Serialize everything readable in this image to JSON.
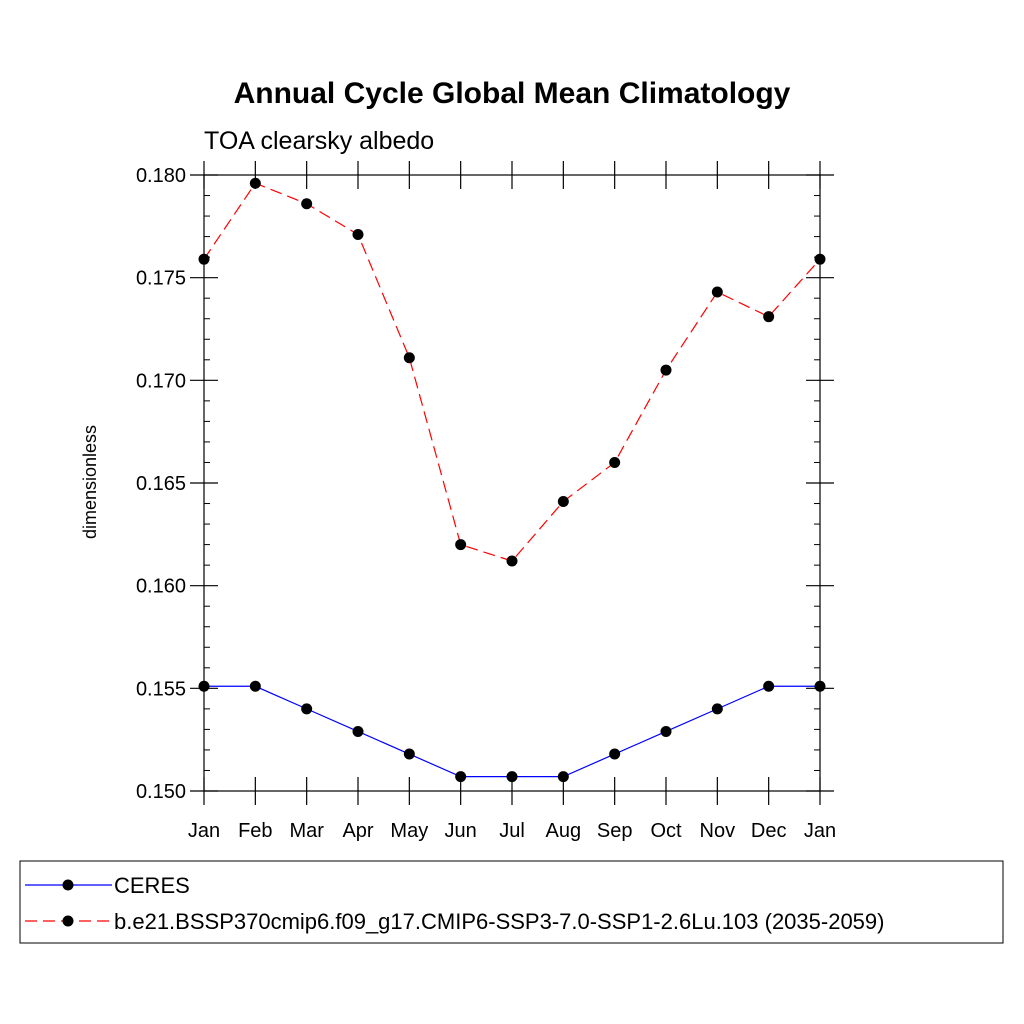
{
  "chart_data": {
    "type": "line",
    "title": "Annual Cycle Global Mean Climatology",
    "subtitle": "TOA clearsky albedo",
    "xlabel": "",
    "ylabel": "dimensionless",
    "categories": [
      "Jan",
      "Feb",
      "Mar",
      "Apr",
      "May",
      "Jun",
      "Jul",
      "Aug",
      "Sep",
      "Oct",
      "Nov",
      "Dec",
      "Jan"
    ],
    "ylim": [
      0.15,
      0.18
    ],
    "yticks": [
      "0.150",
      "0.155",
      "0.160",
      "0.165",
      "0.170",
      "0.175",
      "0.180"
    ],
    "series": [
      {
        "name": "CERES",
        "color": "#0000ff",
        "dashed": false,
        "values": [
          0.1551,
          0.1551,
          0.154,
          0.1529,
          0.1518,
          0.1507,
          0.1507,
          0.1507,
          0.1518,
          0.1529,
          0.154,
          0.1551,
          0.1551
        ]
      },
      {
        "name": "b.e21.BSSP370cmip6.f09_g17.CMIP6-SSP3-7.0-SSP1-2.6Lu.103 (2035-2059)",
        "color": "#ff0000",
        "dashed": true,
        "values": [
          0.1759,
          0.1796,
          0.1786,
          0.1771,
          0.1711,
          0.162,
          0.1612,
          0.1641,
          0.166,
          0.1705,
          0.1743,
          0.1731,
          0.1759
        ]
      }
    ],
    "grid": false,
    "legend_position": "bottom"
  }
}
